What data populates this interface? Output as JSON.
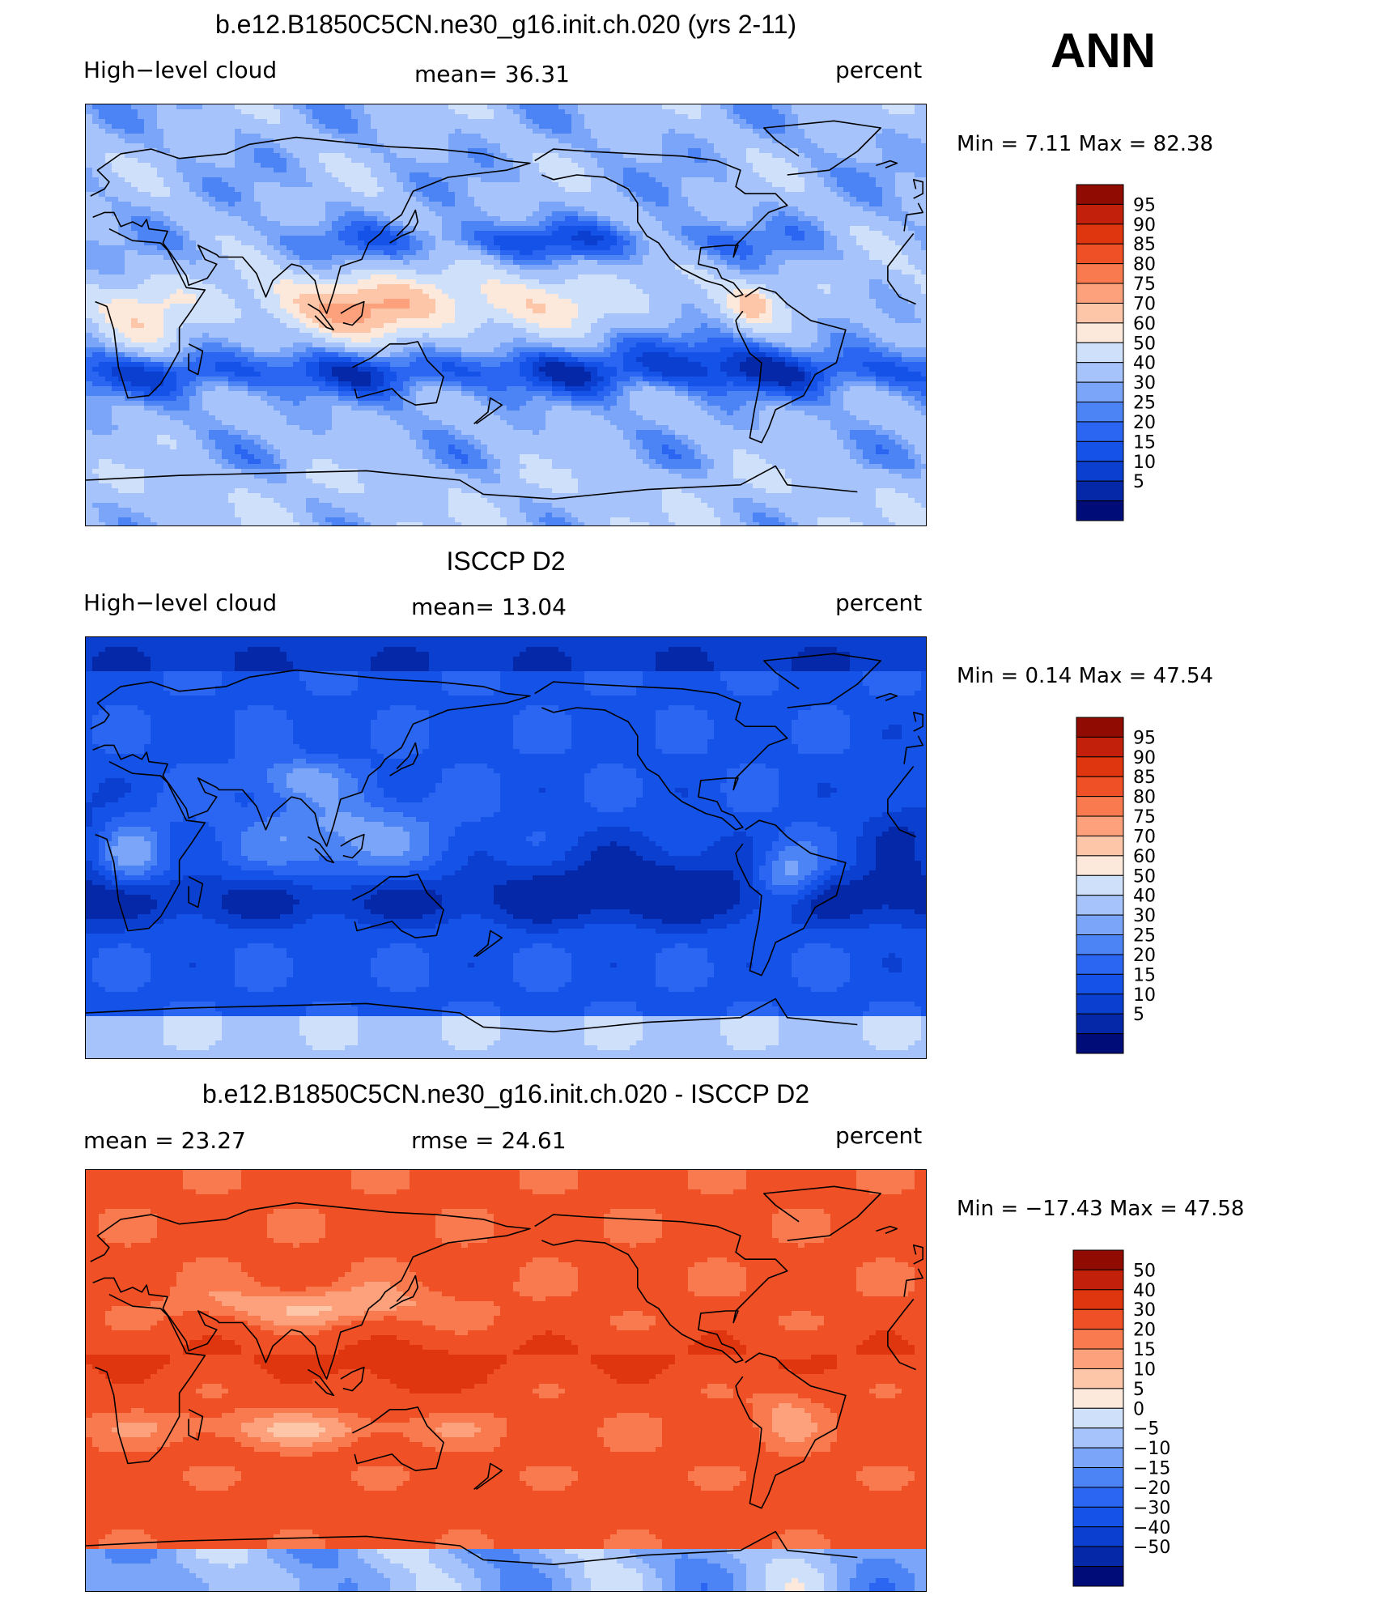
{
  "season_label": "ANN",
  "colors": {
    "abs_scale": [
      "#000c78",
      "#0428a8",
      "#0a3fd0",
      "#1452e8",
      "#2b66f2",
      "#4c84f6",
      "#7aa5f8",
      "#a6c4fb",
      "#cfe0fb",
      "#fde9dc",
      "#fdc6a8",
      "#fca17c",
      "#f97a4e",
      "#f05025",
      "#e0360f",
      "#c2200a",
      "#900b02"
    ],
    "diff_scale": [
      "#000c78",
      "#0428a8",
      "#0a3fd0",
      "#1452e8",
      "#2b66f2",
      "#4c84f6",
      "#7aa5f8",
      "#a6c4fb",
      "#cfe0fb",
      "#fde9dc",
      "#fdc6a8",
      "#fca17c",
      "#f97a4e",
      "#f05025",
      "#e0360f",
      "#c2200a",
      "#900b02"
    ]
  },
  "panels": [
    {
      "title": "b.e12.B1850C5CN.ne30_g16.init.ch.020 (yrs 2-11)",
      "left_label": "High−level cloud",
      "center_label": "mean=   36.31",
      "right_label": "percent",
      "minmax": "Min =     7.11  Max =    82.38",
      "field": "model",
      "colorbar_ticks": [
        "95",
        "90",
        "85",
        "80",
        "75",
        "70",
        "60",
        "50",
        "40",
        "30",
        "25",
        "20",
        "15",
        "10",
        "5"
      ]
    },
    {
      "title": "ISCCP D2",
      "left_label": "High−level cloud",
      "center_label": "mean=   13.04",
      "right_label": "percent",
      "minmax": "Min =     0.14  Max =    47.54",
      "field": "obs",
      "colorbar_ticks": [
        "95",
        "90",
        "85",
        "80",
        "75",
        "70",
        "60",
        "50",
        "40",
        "30",
        "25",
        "20",
        "15",
        "10",
        "5"
      ]
    },
    {
      "title": "b.e12.B1850C5CN.ne30_g16.init.ch.020 - ISCCP D2",
      "left_label": "mean =    23.27",
      "center_label": "rmse =    24.61",
      "right_label": "percent",
      "minmax": "Min =  −17.43  Max =    47.58",
      "field": "diff",
      "colorbar_ticks": [
        "50",
        "40",
        "30",
        "20",
        "15",
        "10",
        "5",
        "0",
        "−5",
        "−10",
        "−15",
        "−20",
        "−30",
        "−40",
        "−50"
      ]
    }
  ],
  "chart_data": [
    {
      "type": "heatmap",
      "title": "b.e12.B1850C5CN.ne30_g16.init.ch.020 (yrs 2-11)",
      "variable": "High−level cloud",
      "units": "percent",
      "mean": 36.31,
      "min": 7.11,
      "max": 82.38,
      "contour_levels": [
        5,
        10,
        15,
        20,
        25,
        30,
        40,
        50,
        60,
        70,
        75,
        80,
        85,
        90,
        95
      ]
    },
    {
      "type": "heatmap",
      "title": "ISCCP D2",
      "variable": "High−level cloud",
      "units": "percent",
      "mean": 13.04,
      "min": 0.14,
      "max": 47.54,
      "contour_levels": [
        5,
        10,
        15,
        20,
        25,
        30,
        40,
        50,
        60,
        70,
        75,
        80,
        85,
        90,
        95
      ]
    },
    {
      "type": "heatmap",
      "title": "b.e12.B1850C5CN.ne30_g16.init.ch.020 - ISCCP D2",
      "units": "percent",
      "mean": 23.27,
      "rmse": 24.61,
      "min": -17.43,
      "max": 47.58,
      "contour_levels": [
        -50,
        -40,
        -30,
        -20,
        -15,
        -10,
        -5,
        0,
        5,
        10,
        15,
        20,
        30,
        40,
        50
      ]
    }
  ]
}
